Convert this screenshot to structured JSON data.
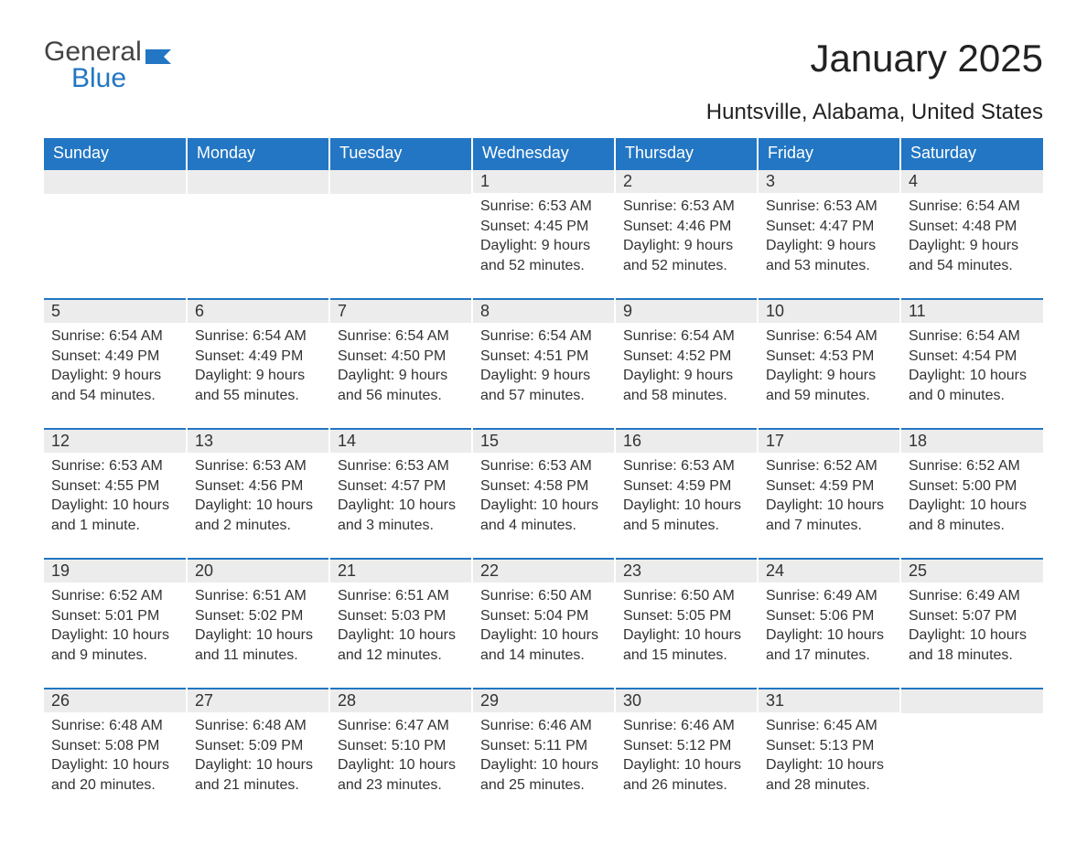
{
  "brand": {
    "text1": "General",
    "text2": "Blue",
    "flag_color": "#2276c3"
  },
  "title": "January 2025",
  "location": "Huntsville, Alabama, United States",
  "colors": {
    "header_bg": "#2276c3",
    "header_text": "#ffffff",
    "daybar_bg": "#ececec",
    "row_sep": "#2276c3",
    "body_text": "#333333",
    "background": "#ffffff"
  },
  "layout": {
    "columns": 7,
    "rows": 5,
    "first_day_column_index": 3
  },
  "day_headers": [
    "Sunday",
    "Monday",
    "Tuesday",
    "Wednesday",
    "Thursday",
    "Friday",
    "Saturday"
  ],
  "weeks": [
    [
      null,
      null,
      null,
      {
        "n": "1",
        "sr": "Sunrise: 6:53 AM",
        "ss": "Sunset: 4:45 PM",
        "d1": "Daylight: 9 hours",
        "d2": "and 52 minutes."
      },
      {
        "n": "2",
        "sr": "Sunrise: 6:53 AM",
        "ss": "Sunset: 4:46 PM",
        "d1": "Daylight: 9 hours",
        "d2": "and 52 minutes."
      },
      {
        "n": "3",
        "sr": "Sunrise: 6:53 AM",
        "ss": "Sunset: 4:47 PM",
        "d1": "Daylight: 9 hours",
        "d2": "and 53 minutes."
      },
      {
        "n": "4",
        "sr": "Sunrise: 6:54 AM",
        "ss": "Sunset: 4:48 PM",
        "d1": "Daylight: 9 hours",
        "d2": "and 54 minutes."
      }
    ],
    [
      {
        "n": "5",
        "sr": "Sunrise: 6:54 AM",
        "ss": "Sunset: 4:49 PM",
        "d1": "Daylight: 9 hours",
        "d2": "and 54 minutes."
      },
      {
        "n": "6",
        "sr": "Sunrise: 6:54 AM",
        "ss": "Sunset: 4:49 PM",
        "d1": "Daylight: 9 hours",
        "d2": "and 55 minutes."
      },
      {
        "n": "7",
        "sr": "Sunrise: 6:54 AM",
        "ss": "Sunset: 4:50 PM",
        "d1": "Daylight: 9 hours",
        "d2": "and 56 minutes."
      },
      {
        "n": "8",
        "sr": "Sunrise: 6:54 AM",
        "ss": "Sunset: 4:51 PM",
        "d1": "Daylight: 9 hours",
        "d2": "and 57 minutes."
      },
      {
        "n": "9",
        "sr": "Sunrise: 6:54 AM",
        "ss": "Sunset: 4:52 PM",
        "d1": "Daylight: 9 hours",
        "d2": "and 58 minutes."
      },
      {
        "n": "10",
        "sr": "Sunrise: 6:54 AM",
        "ss": "Sunset: 4:53 PM",
        "d1": "Daylight: 9 hours",
        "d2": "and 59 minutes."
      },
      {
        "n": "11",
        "sr": "Sunrise: 6:54 AM",
        "ss": "Sunset: 4:54 PM",
        "d1": "Daylight: 10 hours",
        "d2": "and 0 minutes."
      }
    ],
    [
      {
        "n": "12",
        "sr": "Sunrise: 6:53 AM",
        "ss": "Sunset: 4:55 PM",
        "d1": "Daylight: 10 hours",
        "d2": "and 1 minute."
      },
      {
        "n": "13",
        "sr": "Sunrise: 6:53 AM",
        "ss": "Sunset: 4:56 PM",
        "d1": "Daylight: 10 hours",
        "d2": "and 2 minutes."
      },
      {
        "n": "14",
        "sr": "Sunrise: 6:53 AM",
        "ss": "Sunset: 4:57 PM",
        "d1": "Daylight: 10 hours",
        "d2": "and 3 minutes."
      },
      {
        "n": "15",
        "sr": "Sunrise: 6:53 AM",
        "ss": "Sunset: 4:58 PM",
        "d1": "Daylight: 10 hours",
        "d2": "and 4 minutes."
      },
      {
        "n": "16",
        "sr": "Sunrise: 6:53 AM",
        "ss": "Sunset: 4:59 PM",
        "d1": "Daylight: 10 hours",
        "d2": "and 5 minutes."
      },
      {
        "n": "17",
        "sr": "Sunrise: 6:52 AM",
        "ss": "Sunset: 4:59 PM",
        "d1": "Daylight: 10 hours",
        "d2": "and 7 minutes."
      },
      {
        "n": "18",
        "sr": "Sunrise: 6:52 AM",
        "ss": "Sunset: 5:00 PM",
        "d1": "Daylight: 10 hours",
        "d2": "and 8 minutes."
      }
    ],
    [
      {
        "n": "19",
        "sr": "Sunrise: 6:52 AM",
        "ss": "Sunset: 5:01 PM",
        "d1": "Daylight: 10 hours",
        "d2": "and 9 minutes."
      },
      {
        "n": "20",
        "sr": "Sunrise: 6:51 AM",
        "ss": "Sunset: 5:02 PM",
        "d1": "Daylight: 10 hours",
        "d2": "and 11 minutes."
      },
      {
        "n": "21",
        "sr": "Sunrise: 6:51 AM",
        "ss": "Sunset: 5:03 PM",
        "d1": "Daylight: 10 hours",
        "d2": "and 12 minutes."
      },
      {
        "n": "22",
        "sr": "Sunrise: 6:50 AM",
        "ss": "Sunset: 5:04 PM",
        "d1": "Daylight: 10 hours",
        "d2": "and 14 minutes."
      },
      {
        "n": "23",
        "sr": "Sunrise: 6:50 AM",
        "ss": "Sunset: 5:05 PM",
        "d1": "Daylight: 10 hours",
        "d2": "and 15 minutes."
      },
      {
        "n": "24",
        "sr": "Sunrise: 6:49 AM",
        "ss": "Sunset: 5:06 PM",
        "d1": "Daylight: 10 hours",
        "d2": "and 17 minutes."
      },
      {
        "n": "25",
        "sr": "Sunrise: 6:49 AM",
        "ss": "Sunset: 5:07 PM",
        "d1": "Daylight: 10 hours",
        "d2": "and 18 minutes."
      }
    ],
    [
      {
        "n": "26",
        "sr": "Sunrise: 6:48 AM",
        "ss": "Sunset: 5:08 PM",
        "d1": "Daylight: 10 hours",
        "d2": "and 20 minutes."
      },
      {
        "n": "27",
        "sr": "Sunrise: 6:48 AM",
        "ss": "Sunset: 5:09 PM",
        "d1": "Daylight: 10 hours",
        "d2": "and 21 minutes."
      },
      {
        "n": "28",
        "sr": "Sunrise: 6:47 AM",
        "ss": "Sunset: 5:10 PM",
        "d1": "Daylight: 10 hours",
        "d2": "and 23 minutes."
      },
      {
        "n": "29",
        "sr": "Sunrise: 6:46 AM",
        "ss": "Sunset: 5:11 PM",
        "d1": "Daylight: 10 hours",
        "d2": "and 25 minutes."
      },
      {
        "n": "30",
        "sr": "Sunrise: 6:46 AM",
        "ss": "Sunset: 5:12 PM",
        "d1": "Daylight: 10 hours",
        "d2": "and 26 minutes."
      },
      {
        "n": "31",
        "sr": "Sunrise: 6:45 AM",
        "ss": "Sunset: 5:13 PM",
        "d1": "Daylight: 10 hours",
        "d2": "and 28 minutes."
      },
      null
    ]
  ]
}
